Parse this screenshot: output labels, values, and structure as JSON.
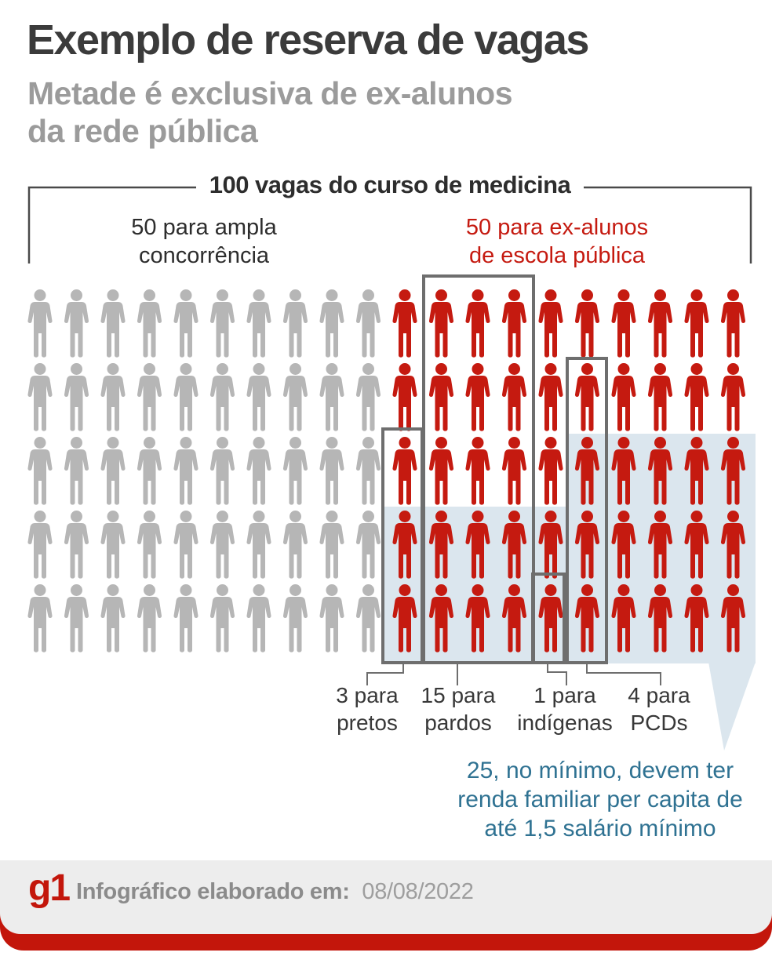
{
  "title": "Exemplo de reserva de vagas",
  "subtitle": {
    "line1": "Metade é exclusiva de ex-alunos",
    "line2": "da rede pública"
  },
  "bracket_label": "100 vagas do curso de medicina",
  "groups": {
    "general": {
      "label_line1": "50 para ampla",
      "label_line2": "concorrência",
      "count": 50
    },
    "public_school": {
      "label_line1": "50 para ex-alunos",
      "label_line2": "de escola pública",
      "count": 50
    }
  },
  "quotas": [
    {
      "id": "pretos",
      "label_line1": "3 para",
      "label_line2": "pretos",
      "count": 3
    },
    {
      "id": "pardos",
      "label_line1": "15 para",
      "label_line2": "pardos",
      "count": 15
    },
    {
      "id": "indigenas",
      "label_line1": "1 para",
      "label_line2": "indígenas",
      "count": 1
    },
    {
      "id": "pcds",
      "label_line1": "4 para",
      "label_line2": "PCDs",
      "count": 4
    }
  ],
  "income_note": {
    "line1": "25, no mínimo, devem ter",
    "line2": "renda familiar per capita de",
    "line3": "até 1,5 salário mínimo",
    "min_count": 25
  },
  "footer": {
    "logo_text": "g1",
    "label": "Infográfico elaborado em:",
    "date": "08/08/2022"
  },
  "colors": {
    "fig_gray": "#b6b6b6",
    "fig_red": "#c51a10",
    "blue": "#dbe6ee",
    "outline": "#6e6e6e",
    "teal": "#2f7292",
    "brand_red": "#c3160b"
  },
  "chart_data": {
    "type": "bar",
    "subtype": "pictogram-unit-chart",
    "title": "100 vagas do curso de medicina",
    "unit": "vagas",
    "total": 100,
    "categories": [
      "ampla concorrência",
      "ex-alunos de escola pública"
    ],
    "values": [
      50,
      50
    ],
    "series": [
      {
        "name": "50 para ampla concorrência",
        "values": [
          50
        ],
        "color": "#b6b6b6"
      },
      {
        "name": "50 para ex-alunos de escola pública",
        "values": [
          50
        ],
        "color": "#c51a10"
      }
    ],
    "public_school_breakdown": [
      {
        "label": "pretos",
        "value": 3
      },
      {
        "label": "pardos",
        "value": 15
      },
      {
        "label": "indígenas",
        "value": 1
      },
      {
        "label": "PCDs",
        "value": 4
      }
    ],
    "annotation": "25, no mínimo, devem ter renda familiar per capita de até 1,5 salário mínimo",
    "layout_hint": "5 rows x 20 columns of person icons; left 10 columns gray, right 10 columns red; outlined sub-boxes for quotas; light-blue callout region covering 25 red figures"
  }
}
